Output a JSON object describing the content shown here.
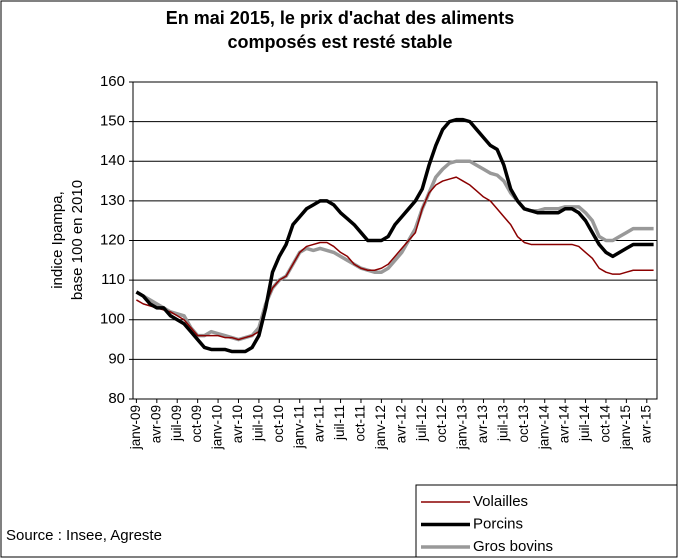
{
  "chart_data": {
    "type": "line",
    "title": [
      "En mai 2015, le prix d'achat des aliments",
      "composés est resté stable"
    ],
    "y_label": [
      "indice Ipampa,",
      "base 100 en 2010"
    ],
    "source": "Source : Insee, Agreste",
    "categories": [
      "janv-09",
      null,
      null,
      "avr-09",
      null,
      null,
      "juil-09",
      null,
      null,
      "oct-09",
      null,
      null,
      "janv-10",
      null,
      null,
      "avr-10",
      null,
      null,
      "juil-10",
      null,
      null,
      "oct-10",
      null,
      null,
      "janv-11",
      null,
      null,
      "avr-11",
      null,
      null,
      "juil-11",
      null,
      null,
      "oct-11",
      null,
      null,
      "janv-12",
      null,
      null,
      "avr-12",
      null,
      null,
      "juil-12",
      null,
      null,
      "oct-12",
      null,
      null,
      "janv-13",
      null,
      null,
      "avr-13",
      null,
      null,
      "juil-13",
      null,
      null,
      "oct-13",
      null,
      null,
      "janv-14",
      null,
      null,
      "avr-14",
      null,
      null,
      "juil-14",
      null,
      null,
      "oct-14",
      null,
      null,
      "janv-15",
      null,
      null,
      "avr-15",
      null
    ],
    "series": [
      {
        "name": "Volailles",
        "color": "#8b0000",
        "width": 1.5,
        "values": [
          105,
          104,
          103.5,
          103,
          102.5,
          102,
          101,
          100,
          98,
          96,
          96,
          96,
          96,
          95.5,
          95.5,
          95,
          95.5,
          96,
          97,
          104,
          108,
          110,
          111,
          114,
          117,
          118.5,
          119,
          119.5,
          119.5,
          118.5,
          117,
          116,
          114,
          113,
          112.5,
          112.5,
          113,
          114,
          116,
          118,
          120,
          122,
          128,
          132,
          134,
          135,
          135.5,
          136,
          135,
          134,
          132.5,
          131,
          130,
          128,
          126,
          124,
          121,
          119.5,
          119,
          119,
          119,
          119,
          119,
          119,
          119,
          118.5,
          117,
          115.5,
          113,
          112,
          111.5,
          111.5,
          112,
          112.5,
          112.5,
          112.5,
          112.5
        ]
      },
      {
        "name": "Porcins",
        "color": "#000000",
        "width": 3.5,
        "values": [
          107,
          106,
          104,
          103,
          103,
          101,
          100,
          99,
          97,
          95,
          93,
          92.5,
          92.5,
          92.5,
          92,
          92,
          92,
          93,
          96,
          103,
          112,
          116,
          119,
          124,
          126,
          128,
          129,
          130,
          130,
          129,
          127,
          125.5,
          124,
          122,
          120,
          120,
          120,
          121,
          124,
          126,
          128,
          130,
          133,
          139,
          144,
          148,
          150,
          150.5,
          150.5,
          150,
          148,
          146,
          144,
          143,
          139,
          133,
          130,
          128,
          127.5,
          127,
          127,
          127,
          127,
          128,
          128,
          127,
          125,
          122,
          119,
          117,
          116,
          117,
          118,
          119,
          119,
          119,
          119
        ]
      },
      {
        "name": "Gros bovins",
        "color": "#999999",
        "width": 3.5,
        "values": [
          107,
          106,
          105,
          104,
          103,
          102,
          101.5,
          101,
          98,
          96,
          96,
          97,
          96.5,
          96,
          95.5,
          95,
          95.5,
          96,
          98,
          104,
          108,
          110,
          111,
          114,
          117,
          118,
          117.5,
          118,
          117.5,
          117,
          116,
          115,
          114,
          113,
          112.5,
          112,
          112,
          113,
          115,
          117,
          120,
          123,
          128,
          132,
          136,
          138,
          139.5,
          140,
          140,
          140,
          139,
          138,
          137,
          136.5,
          135,
          132,
          130,
          128,
          127.5,
          127.5,
          128,
          128,
          128,
          128.5,
          128.5,
          128.5,
          127,
          125,
          121,
          120,
          120,
          121,
          122,
          123,
          123,
          123,
          123
        ]
      }
    ],
    "ylim": [
      80,
      160
    ],
    "yticks": [
      80,
      90,
      100,
      110,
      120,
      130,
      140,
      150,
      160
    ],
    "grid": true
  }
}
